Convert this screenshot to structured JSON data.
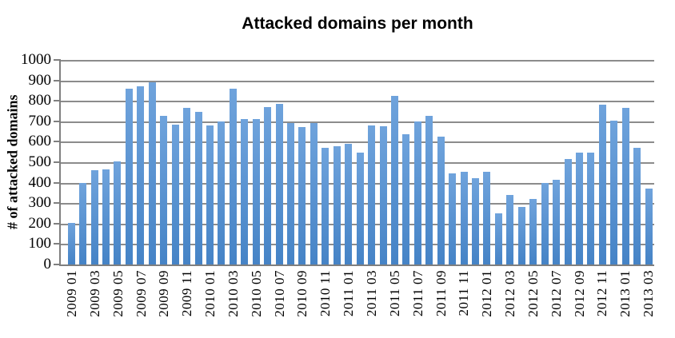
{
  "chart_data": {
    "type": "bar",
    "title": "Attacked domains per month",
    "ylabel": "# of attacked domains",
    "xlabel": "",
    "ylim": [
      0,
      1000
    ],
    "yticks": [
      0,
      100,
      200,
      300,
      400,
      500,
      600,
      700,
      800,
      900,
      1000
    ],
    "grid": true,
    "legend_position": "none",
    "x_label_every": 2,
    "categories": [
      "2009 01",
      "2009 02",
      "2009 03",
      "2009 04",
      "2009 05",
      "2009 06",
      "2009 07",
      "2009 08",
      "2009 09",
      "2009 10",
      "2009 11",
      "2009 12",
      "2010 01",
      "2010 02",
      "2010 03",
      "2010 04",
      "2010 05",
      "2010 06",
      "2010 07",
      "2010 08",
      "2010 09",
      "2010 10",
      "2010 11",
      "2010 12",
      "2011 01",
      "2011 02",
      "2011 03",
      "2011 04",
      "2011 05",
      "2011 06",
      "2011 07",
      "2011 08",
      "2011 09",
      "2011 10",
      "2011 11",
      "2011 12",
      "2012 01",
      "2012 02",
      "2012 03",
      "2012 04",
      "2012 05",
      "2012 06",
      "2012 07",
      "2012 08",
      "2012 09",
      "2012 10",
      "2012 11",
      "2012 12",
      "2013 01",
      "2013 02",
      "2013 03"
    ],
    "values": [
      205,
      400,
      460,
      465,
      505,
      860,
      870,
      890,
      725,
      685,
      765,
      745,
      680,
      700,
      860,
      710,
      710,
      770,
      785,
      690,
      670,
      690,
      570,
      580,
      590,
      545,
      680,
      675,
      825,
      635,
      700,
      725,
      625,
      445,
      455,
      420,
      455,
      250,
      340,
      280,
      320,
      400,
      415,
      515,
      545,
      545,
      780,
      705,
      765,
      570,
      370
    ],
    "colors": {
      "bar_top": "#6FA3DC",
      "bar_bottom": "#4583C6",
      "gridline": "#8C8C8C",
      "axis": "#7F7F7F",
      "text": "#000000"
    }
  }
}
